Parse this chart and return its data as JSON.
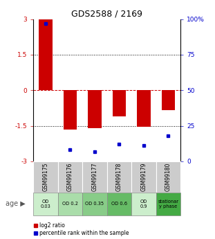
{
  "title": "GDS2588 / 2169",
  "samples": [
    "GSM99175",
    "GSM99176",
    "GSM99177",
    "GSM99178",
    "GSM99179",
    "GSM99180"
  ],
  "log2_ratio": [
    3.0,
    -1.65,
    -1.6,
    -1.1,
    -1.55,
    -0.85
  ],
  "percentile_rank": [
    97,
    8,
    7,
    12,
    11,
    18
  ],
  "bar_color": "#cc0000",
  "dot_color": "#0000cc",
  "ylim_left": [
    -3,
    3
  ],
  "ylim_right": [
    0,
    100
  ],
  "yticks_left": [
    -3,
    -1.5,
    0,
    1.5,
    3
  ],
  "ytick_labels_left": [
    "-3",
    "-1.5",
    "0",
    "1.5",
    "3"
  ],
  "yticks_right": [
    0,
    25,
    50,
    75,
    100
  ],
  "ytick_labels_right": [
    "0",
    "25",
    "50",
    "75",
    "100%"
  ],
  "age_labels": [
    "OD\n0.03",
    "OD 0.2",
    "OD 0.35",
    "OD 0.6",
    "OD\n0.9",
    "stationar\ny phase"
  ],
  "age_bg_colors": [
    "#cceecc",
    "#aaddaa",
    "#88cc88",
    "#66bb66",
    "#cceecc",
    "#44aa44"
  ],
  "sample_bg_color": "#cccccc",
  "legend_red": "log2 ratio",
  "legend_blue": "percentile rank within the sample",
  "bar_width": 0.55,
  "zero_line_color": "#cc0000",
  "grid_color": "#000000",
  "bg_color": "#ffffff"
}
